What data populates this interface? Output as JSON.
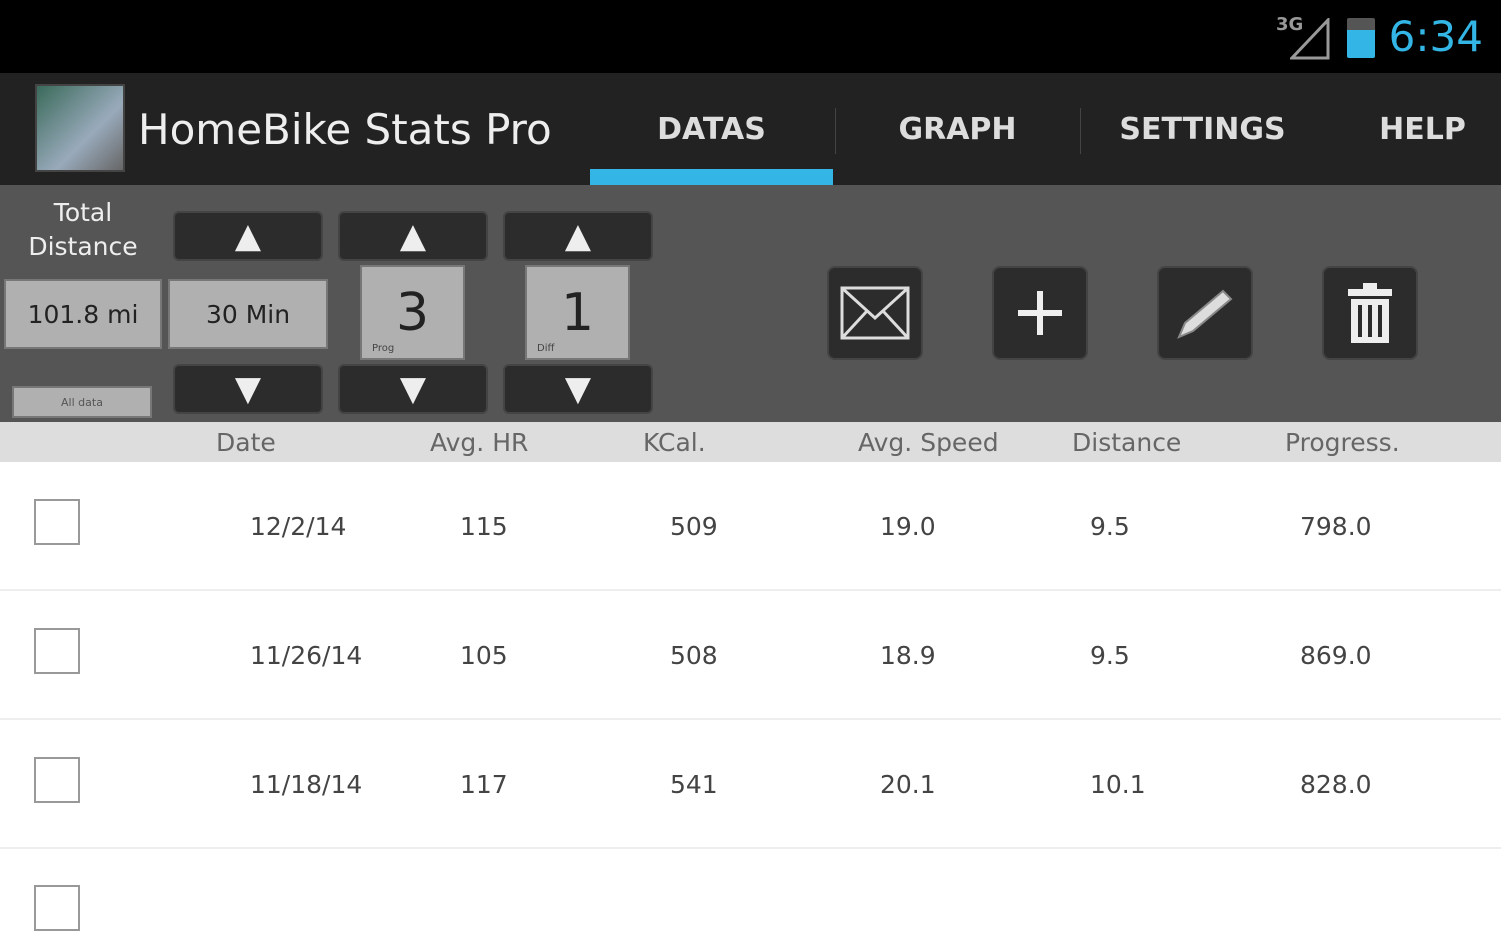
{
  "status": {
    "network": "3G",
    "time": "6:34"
  },
  "app": {
    "title": "HomeBike Stats Pro",
    "tabs": [
      "DATAS",
      "GRAPH",
      "SETTINGS",
      "HELP"
    ],
    "active_tab": "DATAS",
    "accent": "#33b5e5"
  },
  "toolbar": {
    "total_label_1": "Total",
    "total_label_2": "Distance",
    "total_distance": "101.8 mi",
    "duration": "30 Min",
    "program": "3",
    "program_label": "Prog",
    "difficulty": "1",
    "difficulty_label": "Diff",
    "all_data_label": "All data"
  },
  "table": {
    "headers": [
      "Date",
      "Avg. HR",
      "KCal.",
      "Avg. Speed",
      "Distance",
      "Progress."
    ],
    "rows": [
      [
        "12/2/14",
        "115",
        "509",
        "19.0",
        "9.5",
        "798.0"
      ],
      [
        "11/26/14",
        "105",
        "508",
        "18.9",
        "9.5",
        "869.0"
      ],
      [
        "11/18/14",
        "117",
        "541",
        "20.1",
        "10.1",
        "828.0"
      ]
    ]
  }
}
